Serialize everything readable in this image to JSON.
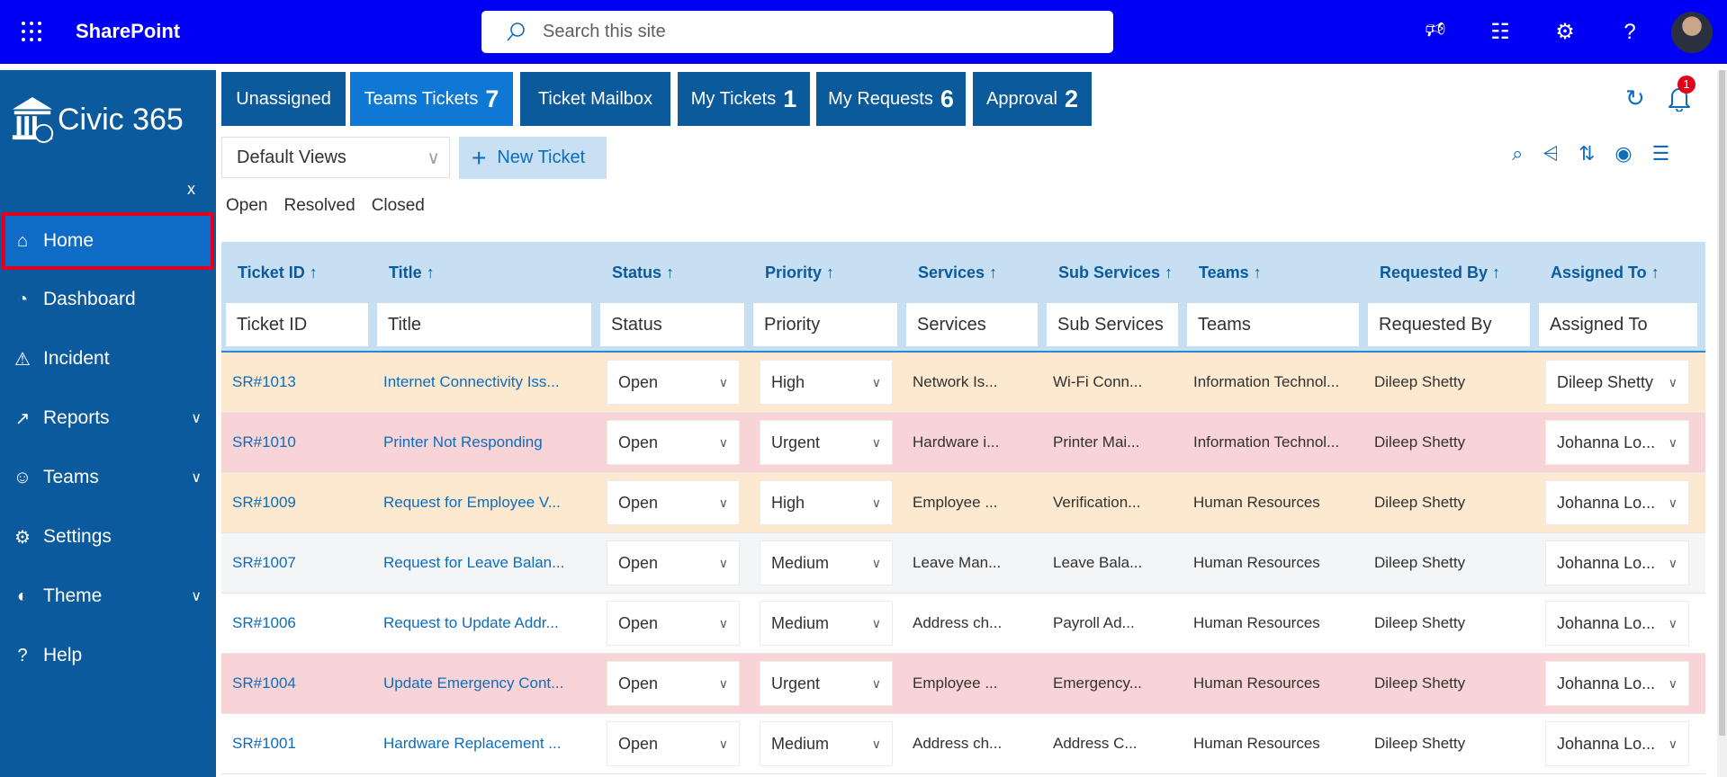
{
  "topbar": {
    "app_name": "SharePoint",
    "search_placeholder": "Search this site",
    "icons": [
      "megaphone-icon",
      "chat-icon",
      "gear-icon",
      "help-icon"
    ]
  },
  "sidebar": {
    "logo_text": "Civic 365",
    "close": "x",
    "items": [
      {
        "label": "Home",
        "icon": "home-icon",
        "active": true
      },
      {
        "label": "Dashboard",
        "icon": "dashboard-icon"
      },
      {
        "label": "Incident",
        "icon": "warning-icon"
      },
      {
        "label": "Reports",
        "icon": "chart-icon",
        "expandable": true
      },
      {
        "label": "Teams",
        "icon": "teams-icon",
        "expandable": true
      },
      {
        "label": "Settings",
        "icon": "gear-icon"
      },
      {
        "label": "Theme",
        "icon": "palette-icon",
        "expandable": true
      },
      {
        "label": "Help",
        "icon": "help-icon"
      }
    ]
  },
  "tabs": [
    {
      "label": "Unassigned",
      "count": ""
    },
    {
      "label": "Teams Tickets",
      "count": "7",
      "active": true
    },
    {
      "label": "Ticket Mailbox",
      "count": ""
    },
    {
      "label": "My Tickets",
      "count": "1"
    },
    {
      "label": "My Requests",
      "count": "6"
    },
    {
      "label": "Approval",
      "count": "2"
    }
  ],
  "notifications": {
    "count": "1"
  },
  "toolbar": {
    "view": "Default Views",
    "new_ticket": "New Ticket",
    "status_filters": [
      "Open",
      "Resolved",
      "Closed"
    ]
  },
  "table": {
    "columns": [
      "Ticket ID",
      "Title",
      "Status",
      "Priority",
      "Services",
      "Sub Services",
      "Teams",
      "Requested By",
      "Assigned To"
    ],
    "filters": [
      "Ticket ID",
      "Title",
      "Status",
      "Priority",
      "Services",
      "Sub Services",
      "Teams",
      "Requested By",
      "Assigned To"
    ],
    "rows": [
      {
        "id": "SR#1013",
        "title": "Internet Connectivity Iss...",
        "status": "Open",
        "priority": "High",
        "services": "Network Is...",
        "sub": "Wi-Fi Conn...",
        "teams": "Information Technol...",
        "requested": "Dileep Shetty",
        "assigned": "Dileep Shetty",
        "color": "#fde9cf"
      },
      {
        "id": "SR#1010",
        "title": "Printer Not Responding",
        "status": "Open",
        "priority": "Urgent",
        "services": "Hardware i...",
        "sub": "Printer Mai...",
        "teams": "Information Technol...",
        "requested": "Dileep Shetty",
        "assigned": "Johanna Lo...",
        "color": "#f8d4d6"
      },
      {
        "id": "SR#1009",
        "title": "Request for Employee V...",
        "status": "Open",
        "priority": "High",
        "services": "Employee ...",
        "sub": "Verification...",
        "teams": "Human Resources",
        "requested": "Dileep Shetty",
        "assigned": "Johanna Lo...",
        "color": "#fde9cf"
      },
      {
        "id": "SR#1007",
        "title": "Request for Leave Balan...",
        "status": "Open",
        "priority": "Medium",
        "services": "Leave Man...",
        "sub": "Leave Bala...",
        "teams": "Human Resources",
        "requested": "Dileep Shetty",
        "assigned": "Johanna Lo...",
        "color": "#f3f5f7"
      },
      {
        "id": "SR#1006",
        "title": "Request to Update Addr...",
        "status": "Open",
        "priority": "Medium",
        "services": "Address ch...",
        "sub": "Payroll Ad...",
        "teams": "Human Resources",
        "requested": "Dileep Shetty",
        "assigned": "Johanna Lo...",
        "color": "#ffffff"
      },
      {
        "id": "SR#1004",
        "title": "Update Emergency Cont...",
        "status": "Open",
        "priority": "Urgent",
        "services": "Employee ...",
        "sub": "Emergency...",
        "teams": "Human Resources",
        "requested": "Dileep Shetty",
        "assigned": "Johanna Lo...",
        "color": "#f8d4d6"
      },
      {
        "id": "SR#1001",
        "title": "Hardware Replacement ...",
        "status": "Open",
        "priority": "Medium",
        "services": "Address ch...",
        "sub": "Address C...",
        "teams": "Human Resources",
        "requested": "Dileep Shetty",
        "assigned": "Johanna Lo...",
        "color": "#ffffff"
      }
    ]
  }
}
